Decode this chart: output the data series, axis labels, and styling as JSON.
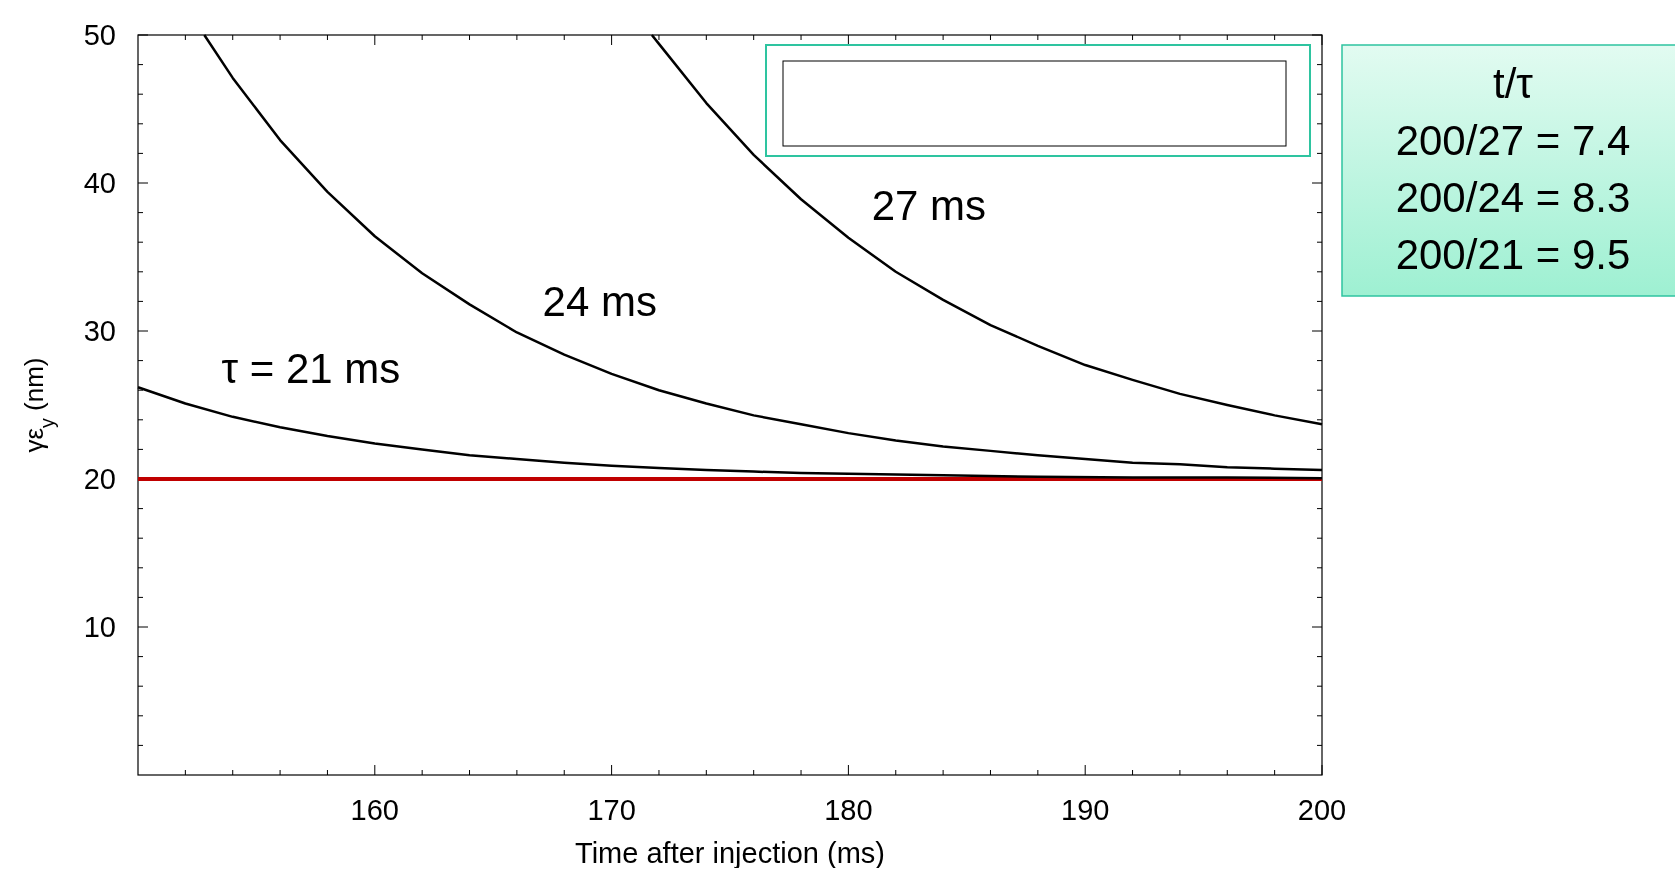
{
  "chart_data": {
    "type": "line",
    "xlabel": "Time after injection (ms)",
    "ylabel": "γε$_{y}$ (nm)",
    "xlim": [
      150,
      200
    ],
    "ylim": [
      0,
      50
    ],
    "xticks": [
      160,
      170,
      180,
      190,
      200
    ],
    "yticks": [
      10,
      20,
      30,
      40,
      50
    ],
    "grid": false,
    "marker": "none",
    "line_style": "solid",
    "series": [
      {
        "name": "τ = 21 ms",
        "color": "#000000",
        "x": [
          150,
          152,
          154,
          156,
          158,
          160,
          162,
          164,
          166,
          168,
          170,
          172,
          174,
          176,
          178,
          180,
          184,
          188,
          192,
          196,
          200
        ],
        "values": [
          26.2,
          25.1,
          24.2,
          23.5,
          22.9,
          22.4,
          22.0,
          21.6,
          21.35,
          21.1,
          20.9,
          20.75,
          20.6,
          20.5,
          20.4,
          20.35,
          20.25,
          20.15,
          20.1,
          20.1,
          20.05
        ]
      },
      {
        "name": "24 ms",
        "color": "#000000",
        "x": [
          152.8,
          154,
          156,
          158,
          160,
          162,
          164,
          166,
          168,
          170,
          172,
          174,
          176,
          178,
          180,
          182,
          184,
          186,
          188,
          190,
          192,
          194,
          196,
          198,
          200
        ],
        "values": [
          50,
          47.1,
          42.9,
          39.4,
          36.4,
          33.9,
          31.8,
          29.9,
          28.4,
          27.1,
          26.0,
          25.1,
          24.3,
          23.7,
          23.1,
          22.6,
          22.2,
          21.9,
          21.6,
          21.35,
          21.1,
          21.0,
          20.8,
          20.7,
          20.6
        ]
      },
      {
        "name": "27 ms",
        "color": "#000000",
        "x": [
          171.7,
          172,
          174,
          176,
          178,
          180,
          182,
          184,
          186,
          188,
          190,
          192,
          194,
          196,
          198,
          200
        ],
        "values": [
          50,
          49.4,
          45.4,
          41.9,
          38.9,
          36.3,
          34.0,
          32.1,
          30.4,
          29.0,
          27.7,
          26.7,
          25.75,
          25.0,
          24.3,
          23.7
        ]
      }
    ],
    "ref_lines": [
      {
        "axis": "y",
        "value": 20,
        "color": "#c00000"
      }
    ],
    "annotations": [
      "t/τ",
      "200/27 = 7.4",
      "200/24 = 8.3",
      "200/21 = 9.5"
    ]
  }
}
